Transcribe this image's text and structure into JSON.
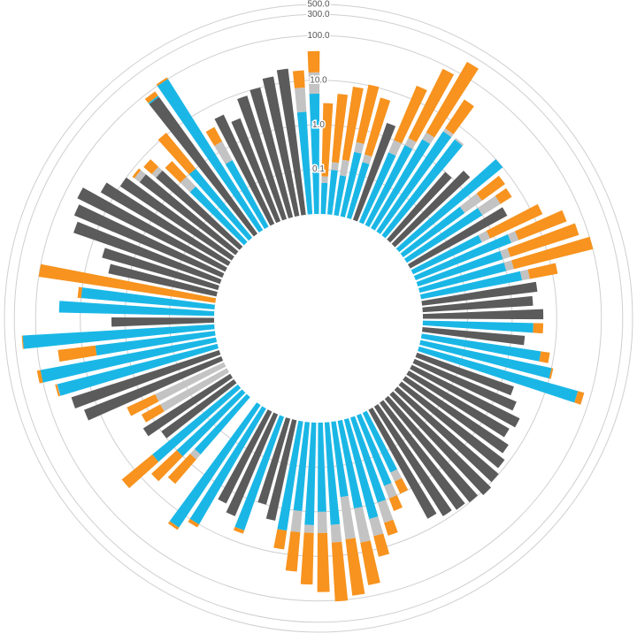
{
  "chart_data": {
    "type": "radial-stacked-bar",
    "log_scale": true,
    "grid": true,
    "ylim": [
      0.01,
      500
    ],
    "yticks": [
      0.1,
      {
        "value": 1,
        "label": "1.0"
      },
      {
        "value": 10,
        "label": "10.0"
      },
      {
        "value": 100,
        "label": "100.0"
      },
      {
        "value": 300,
        "label": "300.0"
      },
      {
        "value": 500,
        "label": "500.0"
      }
    ],
    "series": [
      {
        "color": "#5b5b5b",
        "values": [
          0,
          0,
          0,
          0,
          0,
          2,
          0,
          0,
          0,
          0,
          0,
          1,
          2,
          0,
          0,
          0,
          3,
          0,
          0,
          0,
          0,
          0,
          4,
          3,
          5,
          0,
          2,
          0,
          0,
          0,
          2,
          3,
          5,
          4,
          6,
          8,
          10,
          12,
          10,
          9,
          8,
          6,
          0,
          0,
          0,
          0,
          0,
          0,
          0,
          0,
          0,
          0,
          0,
          2,
          1,
          0,
          3,
          2,
          0,
          0,
          0,
          0,
          0,
          0,
          1,
          2,
          0,
          0,
          20,
          30,
          0,
          0,
          0,
          0,
          2,
          0,
          0,
          0,
          3,
          5,
          30,
          40,
          50,
          20,
          10,
          5,
          3,
          0,
          0,
          60,
          0,
          0,
          5,
          3,
          8,
          10,
          15,
          20,
          0,
          0
        ]
      },
      {
        "color": "#1ab7e6",
        "values": [
          0.05,
          0.1,
          0.08,
          0.3,
          0.2,
          0,
          0.5,
          1,
          2,
          5,
          5,
          0,
          0,
          10,
          0.5,
          1,
          0,
          0.5,
          2,
          1,
          1,
          2,
          0,
          0,
          0,
          3,
          0,
          5,
          10,
          50,
          0,
          0,
          0,
          0,
          0,
          0,
          0,
          0,
          0,
          0,
          0,
          0,
          0.3,
          0.5,
          1,
          2,
          1,
          0.5,
          2,
          1,
          2,
          1,
          3,
          0,
          0,
          5,
          0,
          0,
          10,
          20,
          0,
          0.5,
          1,
          3,
          0,
          0,
          0,
          0,
          0,
          0,
          50,
          100,
          5,
          200,
          0,
          30,
          10,
          0,
          0,
          0,
          0,
          0,
          0,
          0,
          0,
          0,
          0,
          0.5,
          1,
          5,
          100,
          0.5,
          0,
          0,
          0,
          0,
          0,
          0,
          2,
          5
        ]
      },
      {
        "color": "#c3c3c3",
        "values": [
          0.02,
          0.05,
          0.1,
          0.2,
          0.1,
          0,
          0.5,
          0.5,
          1,
          1,
          0.5,
          0,
          0,
          0,
          1,
          2,
          0,
          0.3,
          1,
          0.5,
          0.5,
          1,
          0,
          0,
          0,
          0,
          0,
          0,
          0,
          0,
          0,
          0,
          0,
          0,
          0,
          0,
          0,
          0,
          0,
          0,
          0,
          0,
          0.2,
          0.5,
          2,
          3,
          5,
          4,
          3,
          2,
          1,
          2,
          0,
          0,
          0,
          0,
          0,
          0,
          0,
          0,
          0,
          0.2,
          0,
          0,
          0,
          0,
          0.5,
          0.5,
          0,
          0,
          1,
          0,
          0,
          0,
          0,
          0,
          0,
          0,
          0,
          0,
          0,
          0,
          0,
          0,
          0,
          2,
          1,
          0.5,
          0,
          0,
          0,
          1,
          0,
          0,
          0,
          0,
          0,
          0,
          5,
          10
        ]
      },
      {
        "color": "#f7931e",
        "values": [
          3,
          5,
          8,
          10,
          6,
          0,
          20,
          80,
          200,
          30,
          0,
          0,
          0,
          0,
          5,
          3,
          0,
          15,
          40,
          60,
          100,
          10,
          0,
          0,
          0,
          2,
          0,
          3,
          1,
          20,
          0,
          0,
          0,
          0,
          0,
          0,
          0,
          0,
          0,
          0,
          0,
          0,
          0.5,
          1,
          3,
          10,
          50,
          80,
          100,
          60,
          40,
          20,
          5,
          0,
          0,
          1,
          0,
          0,
          2,
          3,
          0,
          3,
          5,
          20,
          0,
          0,
          1,
          2,
          0,
          0,
          5,
          20,
          30,
          10,
          0,
          0,
          2,
          100,
          0,
          0,
          0,
          0,
          0,
          0,
          0,
          1,
          3,
          2,
          10,
          20,
          10,
          2,
          0,
          0,
          0,
          0,
          0,
          0,
          10,
          30
        ]
      }
    ]
  }
}
